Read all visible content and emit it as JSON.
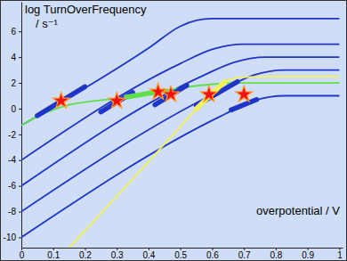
{
  "chart_data": {
    "type": "line",
    "xlabel": "overpotential / V",
    "ylabel": [
      "log TurnOverFrequency",
      "/ s⁻¹"
    ],
    "xlim": [
      0,
      1.01
    ],
    "ylim": [
      -10.8,
      8.3
    ],
    "xticks": [
      0,
      0.1,
      0.2,
      0.3,
      0.4,
      0.5,
      0.6,
      0.7,
      0.8,
      0.9,
      1
    ],
    "yticks": [
      -10,
      -8,
      -6,
      -4,
      -2,
      0,
      2,
      4,
      6
    ],
    "grid": false,
    "series": [
      {
        "type": "line",
        "color": "#1f35c8",
        "line_style": "solid",
        "x": [
          0,
          0.4,
          0.5,
          0.55,
          0.6,
          1
        ],
        "values": [
          -1.3,
          4.7,
          6.4,
          6.85,
          7,
          7
        ]
      },
      {
        "type": "line",
        "color": "#1f35c8",
        "line_style": "solid",
        "x": [
          0,
          0.5,
          0.6,
          0.65,
          0.7,
          1
        ],
        "values": [
          -4,
          3.5,
          4.6,
          4.9,
          5,
          5
        ]
      },
      {
        "type": "line",
        "color": "#1f35c8",
        "line_style": "solid",
        "x": [
          0,
          0.57,
          0.67,
          0.72,
          0.77,
          1
        ],
        "values": [
          -6,
          2.55,
          3.6,
          3.9,
          4,
          4
        ]
      },
      {
        "type": "line",
        "color": "#1f35c8",
        "line_style": "solid",
        "x": [
          0,
          0.63,
          0.73,
          0.78,
          0.83,
          1
        ],
        "values": [
          -8,
          1.45,
          2.6,
          2.9,
          3,
          3
        ]
      },
      {
        "type": "line",
        "color": "#1f35c8",
        "line_style": "solid",
        "x": [
          0,
          0.63,
          0.73,
          0.78,
          0.83,
          1
        ],
        "values": [
          -10,
          -0.55,
          0.6,
          0.9,
          1,
          1
        ]
      },
      {
        "type": "line",
        "color": "#5fe04a",
        "line_style": "solid",
        "x": [
          0,
          0.05,
          0.1,
          0.15,
          0.2,
          0.3,
          0.4,
          0.5,
          0.6,
          0.7,
          1
        ],
        "values": [
          -1.3,
          -0.6,
          -0.1,
          0.3,
          0.5,
          0.8,
          1.2,
          1.6,
          1.9,
          2,
          2
        ]
      },
      {
        "type": "line",
        "color": "#f2f25a",
        "line_style": "solid",
        "x": [
          0.15,
          0.55,
          0.6,
          0.65,
          0.7,
          0.8,
          1
        ],
        "values": [
          -10.8,
          0,
          1.4,
          2.2,
          2.45,
          2.5,
          2.5
        ]
      },
      {
        "type": "line",
        "color": "#1f35c8",
        "line_style": "bold",
        "x": [
          0.05,
          0.2
        ],
        "values": [
          -0.55,
          1.7
        ]
      },
      {
        "type": "line",
        "color": "#1f35c8",
        "line_style": "bold",
        "x": [
          0.25,
          0.35
        ],
        "values": [
          -0.25,
          1.25
        ]
      },
      {
        "type": "line",
        "color": "#1f35c8",
        "line_style": "bold",
        "x": [
          0.42,
          0.52
        ],
        "values": [
          0.3,
          1.8
        ]
      },
      {
        "type": "line",
        "color": "#1f35c8",
        "line_style": "bold",
        "x": [
          0.55,
          0.68
        ],
        "values": [
          0.25,
          2.1
        ]
      },
      {
        "type": "line",
        "color": "#1f35c8",
        "line_style": "bold",
        "x": [
          0.66,
          0.74
        ],
        "values": [
          -0.1,
          0.7
        ]
      },
      {
        "type": "line",
        "color": "#5fe04a",
        "line_style": "bold",
        "x": [
          0.33,
          0.45
        ],
        "values": [
          0.9,
          1.4
        ]
      },
      {
        "type": "line",
        "color": "#f2f25a",
        "line_style": "bold",
        "x": [
          0.55,
          0.64
        ],
        "values": [
          0,
          2.1
        ]
      },
      {
        "type": "scatter",
        "color": "#ee1111",
        "marker": "star",
        "x": [
          0.125,
          0.3,
          0.43,
          0.47,
          0.59,
          0.7
        ],
        "values": [
          0.6,
          0.6,
          1.3,
          1.1,
          1.1,
          1.1
        ]
      }
    ]
  }
}
